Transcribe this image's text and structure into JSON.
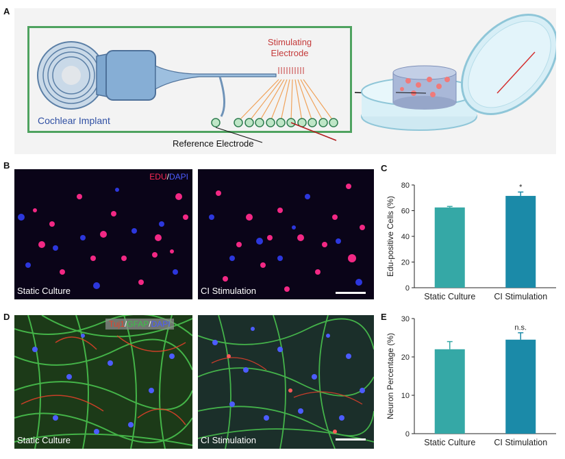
{
  "panels": {
    "A": "A",
    "B": "B",
    "C": "C",
    "D": "D",
    "E": "E"
  },
  "schematic": {
    "implant_label": "Cochlear Implant",
    "stim_label_1": "Stimulating",
    "stim_label_2": "Electrode",
    "ref_label": "Reference Electrode"
  },
  "micrographs": {
    "B_left_caption": "Static Culture",
    "B_right_caption": "CI Stimulation",
    "B_stain_edu": "EDU",
    "B_stain_sep": "/",
    "B_stain_dapi": "DAPI",
    "D_left_caption": "Static Culture",
    "D_right_caption": "CI Stimulation",
    "D_stain_tuj": "Tuj1",
    "D_stain_sep1": "/",
    "D_stain_gfap": "GFAP",
    "D_stain_sep2": "/",
    "D_stain_dapi": "DAPI"
  },
  "colors": {
    "teal": "#35a8a6",
    "blue_teal": "#1b8aa8",
    "edu": "#ff2a55",
    "dapi": "#3b48ff",
    "tuj1": "#e8402a",
    "gfap": "#3cc24a"
  },
  "chart_data": [
    {
      "type": "bar",
      "panel": "C",
      "categories": [
        "Static Culture",
        "CI Stimulation"
      ],
      "values": [
        62.5,
        71.5
      ],
      "errors": [
        0.8,
        3.0
      ],
      "annotations": [
        "",
        "*"
      ],
      "ylabel": "Edu-positive Cells (%)",
      "ylim": [
        0,
        80
      ],
      "yticks": [
        0,
        20,
        40,
        60,
        80
      ],
      "colors": [
        "#35a8a6",
        "#1b8aa8"
      ]
    },
    {
      "type": "bar",
      "panel": "E",
      "categories": [
        "Static Culture",
        "CI Stimulation"
      ],
      "values": [
        22.0,
        24.5
      ],
      "errors": [
        2.0,
        1.8
      ],
      "annotations": [
        "",
        "n.s."
      ],
      "ylabel": "Neuron Percentage (%)",
      "ylim": [
        0,
        30
      ],
      "yticks": [
        0,
        10,
        20,
        30
      ],
      "colors": [
        "#35a8a6",
        "#1b8aa8"
      ]
    }
  ]
}
